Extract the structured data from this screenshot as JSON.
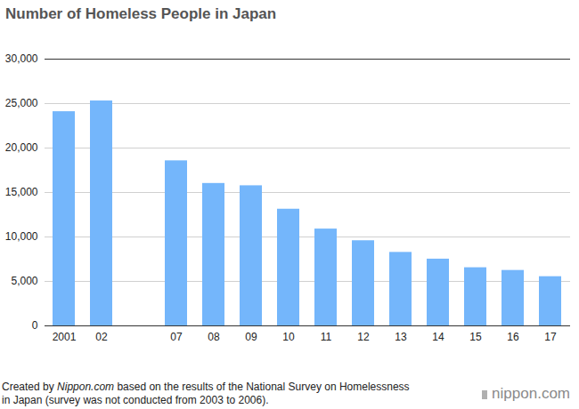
{
  "chart_data": {
    "type": "bar",
    "title": "Number of Homeless People in Japan",
    "categories": [
      "2001",
      "02",
      null,
      "07",
      "08",
      "09",
      "10",
      "11",
      "12",
      "13",
      "14",
      "15",
      "16",
      "17"
    ],
    "values": [
      24090,
      25296,
      null,
      18564,
      16018,
      15759,
      13124,
      10890,
      9576,
      8265,
      7508,
      6541,
      6235,
      5534
    ],
    "color": "#74b6fb",
    "ylim": [
      0,
      30000
    ],
    "yticks": [
      0,
      {
        "value": 5000,
        "label": "5,000"
      },
      {
        "value": 10000,
        "label": "10,000"
      },
      {
        "value": 15000,
        "label": "15,000"
      },
      {
        "value": 20000,
        "label": "20,000"
      },
      {
        "value": 25000,
        "label": "25,000"
      },
      {
        "value": 30000,
        "label": "30,000"
      }
    ],
    "grid": true,
    "caption": [
      "Created by ",
      "Nippon.com",
      " based on the results of the National Survey on Homelessness in Japan (survey was not conducted from 2003 to 2006)."
    ],
    "credit": "nippon.com"
  }
}
